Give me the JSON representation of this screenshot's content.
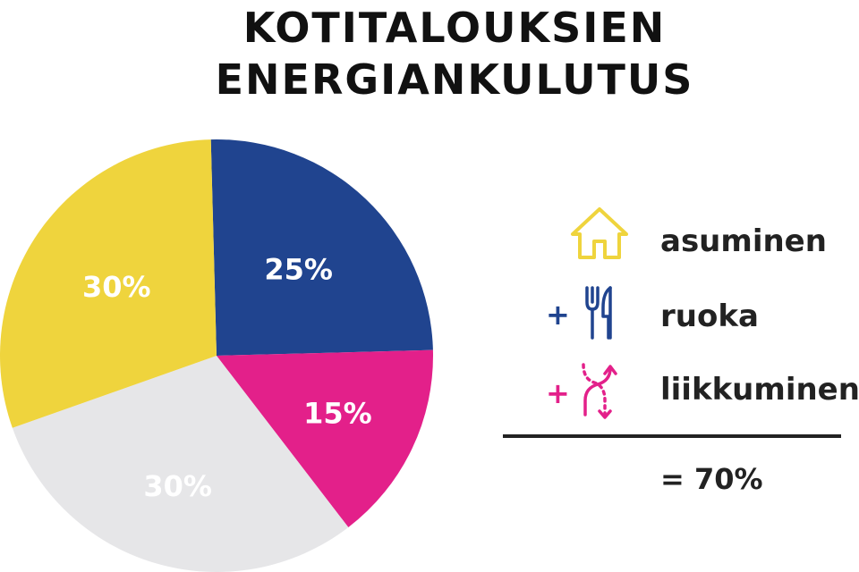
{
  "title": {
    "line1": "KOTITALOUKSIEN",
    "line2": "ENERGIANKULUTUS"
  },
  "chart_data": {
    "type": "pie",
    "title": "KOTITALOUKSIEN ENERGIANKULUTUS",
    "slices": [
      {
        "label": "25%",
        "value": 25,
        "color": "#20448f",
        "label_color": "#ffffff"
      },
      {
        "label": "15%",
        "value": 15,
        "color": "#e3208a",
        "label_color": "#ffffff"
      },
      {
        "label": "30%",
        "value": 30,
        "color": "#e6e6e8",
        "label_color": "#ffffff"
      },
      {
        "label": "30%",
        "value": 30,
        "color": "#efd43d",
        "label_color": "#ffffff"
      }
    ]
  },
  "legend": {
    "items": [
      {
        "prefix": "",
        "label": "asuminen",
        "icon": "house-icon",
        "color": "#efd43d"
      },
      {
        "prefix": "+",
        "label": "ruoka",
        "icon": "fork-knife-icon",
        "color": "#20448f"
      },
      {
        "prefix": "+",
        "label": "liikkuminen",
        "icon": "route-arrows-icon",
        "color": "#e3208a"
      }
    ],
    "total": "= 70%"
  }
}
